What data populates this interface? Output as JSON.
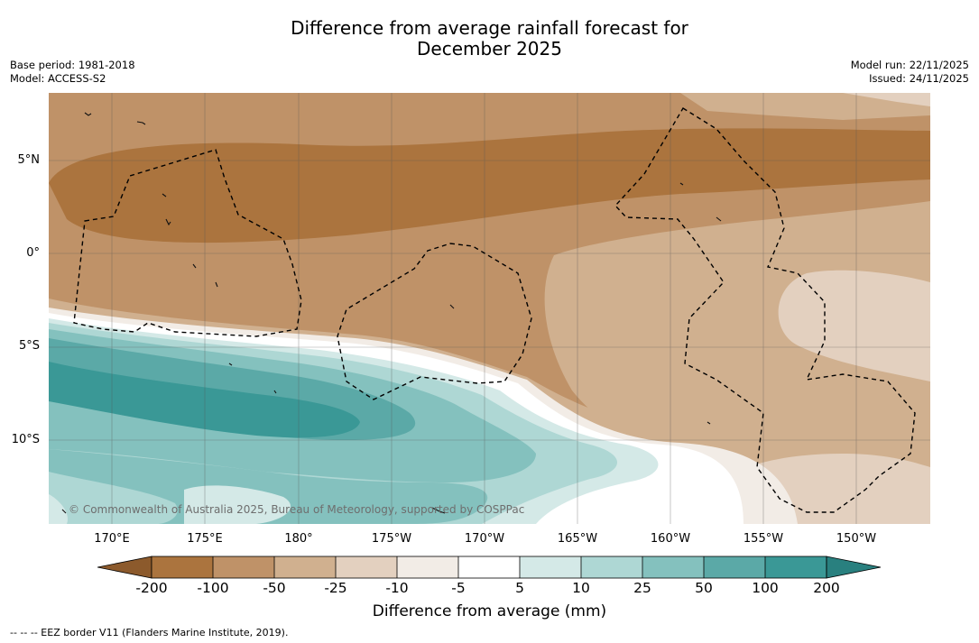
{
  "title": {
    "line1": "Difference from average rainfall forecast for",
    "line2": "December 2025"
  },
  "meta_left": {
    "base_period": "Base period: 1981-2018",
    "model": "Model: ACCESS-S2"
  },
  "meta_right": {
    "model_run": "Model run: 22/11/2025",
    "issued": "Issued: 24/11/2025"
  },
  "map": {
    "latitude_labels": [
      "5°N",
      "0°",
      "5°S",
      "10°S"
    ],
    "longitude_labels": [
      "170°E",
      "175°E",
      "180°",
      "175°W",
      "170°W",
      "165°W",
      "160°W",
      "155°W",
      "150°W"
    ],
    "copyright": "© Commonwealth of Australia 2025, Bureau of Meteorology, supported by COSPPac"
  },
  "colorbar": {
    "ticks": [
      "-200",
      "-100",
      "-50",
      "-25",
      "-10",
      "-5",
      "5",
      "10",
      "25",
      "50",
      "100",
      "200"
    ],
    "colors": [
      "#8c5a2c",
      "#ab743e",
      "#bf9268",
      "#d0b08f",
      "#e3d0bf",
      "#f2ece6",
      "#ffffff",
      "#d4e9e7",
      "#aed7d4",
      "#84c1be",
      "#5ba9a7",
      "#3a9896",
      "#29807f"
    ],
    "label": "Difference from average (mm)"
  },
  "legend": {
    "eez": "-- -- -- EEZ border V11 (Flanders Marine Institute, 2019)."
  }
}
